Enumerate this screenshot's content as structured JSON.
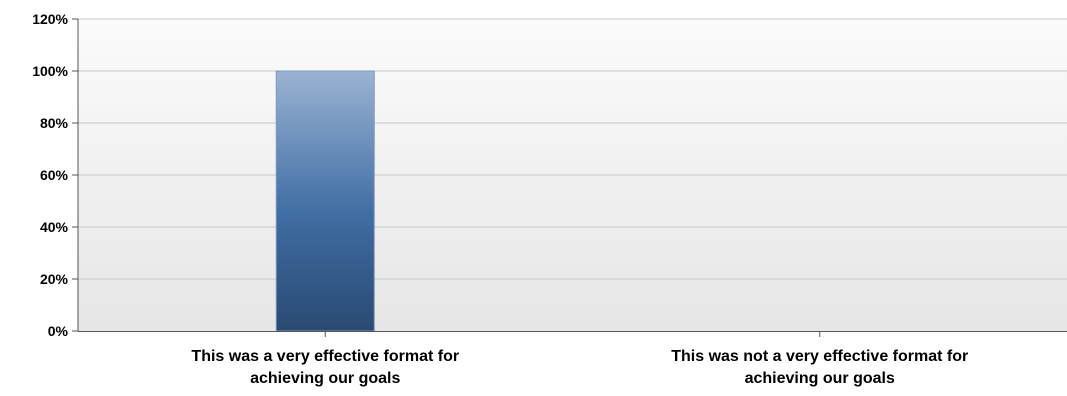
{
  "chart_data": {
    "type": "bar",
    "categories": [
      [
        "This was a very effective format for",
        "achieving our goals"
      ],
      [
        "This was not a very effective format for",
        "achieving our goals"
      ]
    ],
    "values": [
      100,
      0
    ],
    "yticks": [
      "0%",
      "20%",
      "40%",
      "60%",
      "80%",
      "100%",
      "120%"
    ],
    "ylim": [
      0,
      120
    ],
    "grid": true,
    "colors": {
      "bar_top": "#9bb3d3",
      "bar_mid": "#3f6da4",
      "bar_bottom": "#2a4a72",
      "plot_top": "#fbfbfb",
      "plot_bottom": "#e6e6e6",
      "grid": "#c8c8c8",
      "axis": "#555555"
    }
  }
}
